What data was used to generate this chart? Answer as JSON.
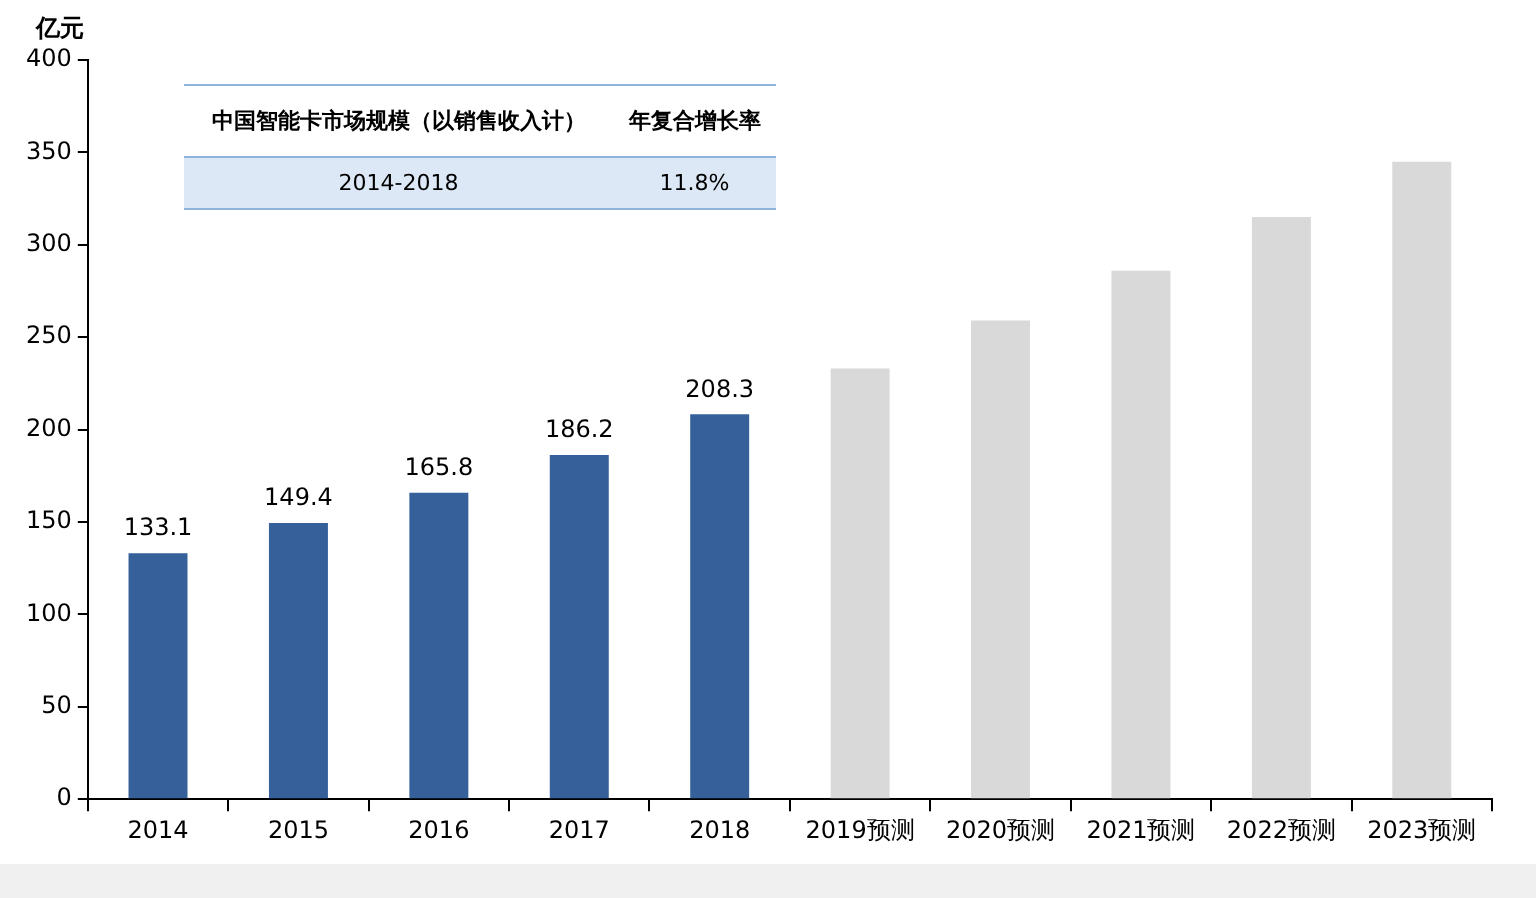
{
  "chart_data": {
    "type": "bar",
    "ylabel": "亿元",
    "categories": [
      "2014",
      "2015",
      "2016",
      "2017",
      "2018",
      "2019预测",
      "2020预测",
      "2021预测",
      "2022预测",
      "2023预测"
    ],
    "values": [
      133.1,
      149.4,
      165.8,
      186.2,
      208.3,
      233,
      259,
      286,
      315,
      345
    ],
    "colors": [
      "#35609a",
      "#35609a",
      "#35609a",
      "#35609a",
      "#35609a",
      "#d9d9d9",
      "#d9d9d9",
      "#d9d9d9",
      "#d9d9d9",
      "#d9d9d9"
    ],
    "value_labels": [
      "133.1",
      "149.4",
      "165.8",
      "186.2",
      "208.3",
      null,
      null,
      null,
      null,
      null
    ],
    "ylim": [
      0,
      400
    ],
    "yticks": [
      0,
      50,
      100,
      150,
      200,
      250,
      300,
      350,
      400
    ],
    "grid": false,
    "legend": false,
    "annotations": [
      "中国智能卡市场规模（以销售收入计）",
      "年复合增长率",
      "2014-2018",
      "11.8%"
    ]
  }
}
